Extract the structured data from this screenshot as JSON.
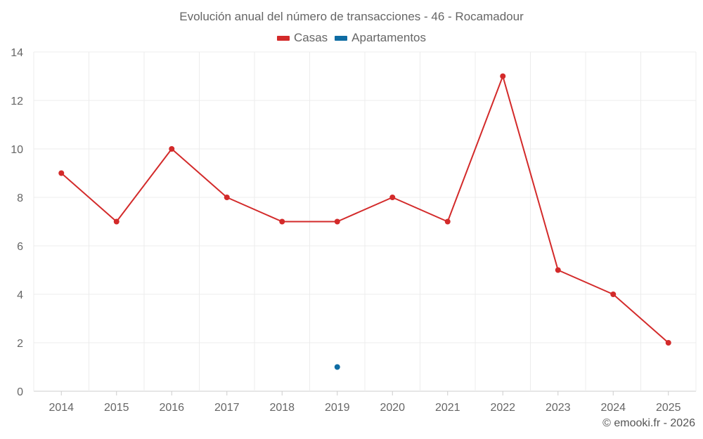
{
  "chart_data": {
    "type": "line",
    "title": "Evolución anual del número de transacciones - 46 - Rocamadour",
    "categories": [
      "2014",
      "2015",
      "2016",
      "2017",
      "2018",
      "2019",
      "2020",
      "2021",
      "2022",
      "2023",
      "2024",
      "2025"
    ],
    "series": [
      {
        "name": "Casas",
        "color": "#d32a2a",
        "values": [
          9,
          7,
          10,
          8,
          7,
          7,
          8,
          7,
          13,
          5,
          4,
          2
        ]
      },
      {
        "name": "Apartamentos",
        "color": "#0f6ca3",
        "values": [
          null,
          null,
          null,
          null,
          null,
          1,
          null,
          null,
          null,
          null,
          null,
          null
        ]
      }
    ],
    "y_ticks": [
      "0",
      "2",
      "4",
      "6",
      "8",
      "10",
      "12",
      "14"
    ],
    "ylim": [
      0,
      14
    ],
    "xlabel": "",
    "ylabel": "",
    "grid": true,
    "legend_position": "top-center"
  },
  "credit": "© emooki.fr - 2026"
}
